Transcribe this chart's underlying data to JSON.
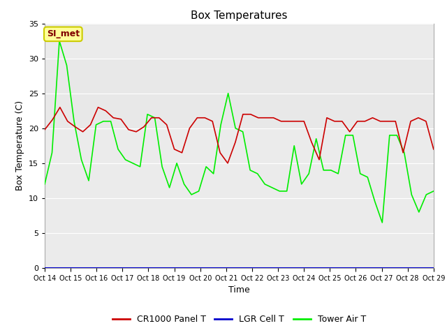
{
  "title": "Box Temperatures",
  "xlabel": "Time",
  "ylabel": "Box Temperature (C)",
  "ylim": [
    0,
    35
  ],
  "yticks": [
    0,
    5,
    10,
    15,
    20,
    25,
    30,
    35
  ],
  "x_labels": [
    "Oct 14",
    "Oct 15",
    "Oct 16",
    "Oct 17",
    "Oct 18",
    "Oct 19",
    "Oct 20",
    "Oct 21",
    "Oct 22",
    "Oct 23",
    "Oct 24",
    "Oct 25",
    "Oct 26",
    "Oct 27",
    "Oct 28",
    "Oct 29"
  ],
  "shaded_band_lo": 20,
  "shaded_band_hi": 30,
  "shaded_color": "#E8E8E8",
  "annotation_text": "SI_met",
  "annotation_bg": "#FFFF99",
  "annotation_border": "#CCCC00",
  "annotation_text_color": "#800000",
  "panel_T": [
    19.8,
    21.2,
    23.0,
    21.0,
    20.2,
    19.5,
    20.5,
    23.0,
    22.5,
    21.5,
    21.3,
    19.8,
    19.5,
    20.2,
    21.5,
    21.5,
    20.5,
    17.0,
    16.5,
    20.0,
    21.5,
    21.5,
    21.0,
    16.5,
    15.0,
    18.0,
    22.0,
    22.0,
    21.5,
    21.5,
    21.5,
    21.0,
    21.0,
    21.0,
    21.0,
    18.0,
    15.5,
    21.5,
    21.0,
    21.0,
    19.5,
    21.0,
    21.0,
    21.5,
    21.0,
    21.0,
    21.0,
    16.5,
    21.0,
    21.5,
    21.0,
    17.0
  ],
  "tower_air_T": [
    12.0,
    16.5,
    32.5,
    29.0,
    21.0,
    15.5,
    12.5,
    20.5,
    21.0,
    21.0,
    17.0,
    15.5,
    15.0,
    14.5,
    22.0,
    21.5,
    14.5,
    11.5,
    15.0,
    12.0,
    10.5,
    11.0,
    14.5,
    13.5,
    20.5,
    25.0,
    20.0,
    19.5,
    14.0,
    13.5,
    12.0,
    11.5,
    11.0,
    11.0,
    17.5,
    12.0,
    13.5,
    18.5,
    14.0,
    14.0,
    13.5,
    19.0,
    19.0,
    13.5,
    13.0,
    9.5,
    6.5,
    19.0,
    19.0,
    16.5,
    10.5,
    8.0,
    10.5,
    11.0
  ],
  "lgr_cell_T": [
    0.0,
    0.0,
    0.0,
    0.0,
    0.0,
    0.0,
    0.0,
    0.0,
    0.0,
    0.0,
    0.0,
    0.0,
    0.0,
    0.0,
    0.0,
    0.0,
    0.0,
    0.0,
    0.0,
    0.0,
    0.0,
    0.0,
    0.0,
    0.0,
    0.0,
    0.0,
    0.0,
    0.0,
    0.0,
    0.0,
    0.0,
    0.0,
    0.0,
    0.0,
    0.0,
    0.0,
    0.0,
    0.0,
    0.0,
    0.0,
    0.0,
    0.0,
    0.0,
    0.0,
    0.0,
    0.0,
    0.0,
    0.0,
    0.0,
    0.0,
    0.0,
    0.0
  ],
  "panel_color": "#CC0000",
  "tower_color": "#00EE00",
  "lgr_color": "#0000CC",
  "bg_color": "#FFFFFF",
  "plot_bg": "#EBEBEB",
  "grid_color": "#FFFFFF",
  "title_fontsize": 11,
  "axis_label_fontsize": 9,
  "tick_fontsize": 8,
  "legend_fontsize": 9,
  "linewidth": 1.2
}
